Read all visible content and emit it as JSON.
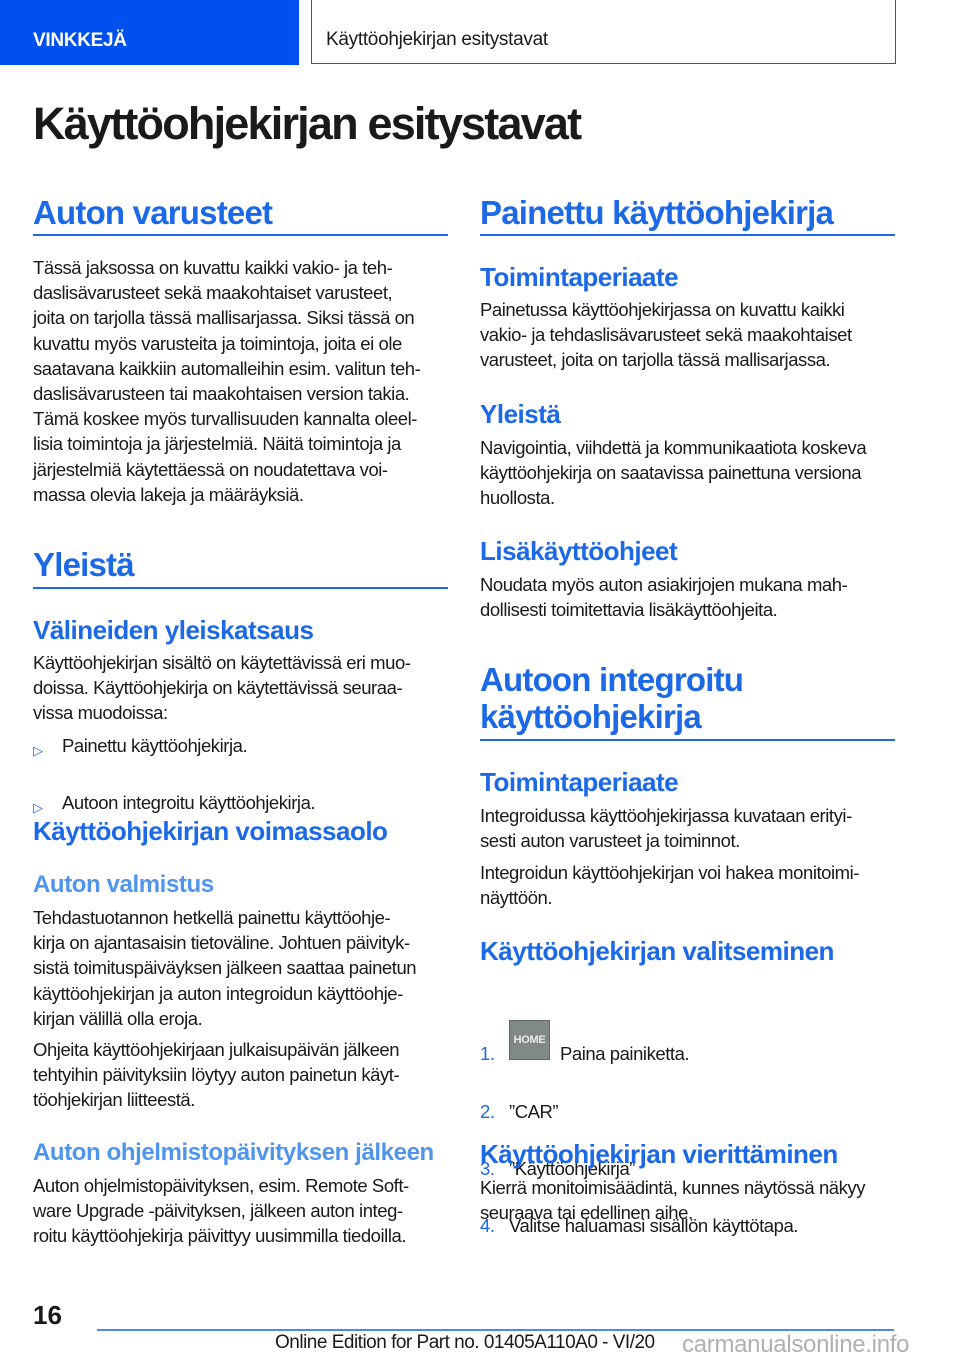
{
  "header": {
    "section": "VINKKEJÄ",
    "chapter": "Käyttöohjekirjan esitystavat"
  },
  "page_title": "Käyttöohjekirjan esitystavat",
  "left": {
    "s1": {
      "title": "Auton varusteet",
      "text": "Tässä jaksossa on kuvattu kaikki vakio- ja teh-\ndaslisävarusteet sekä maakohtaiset varusteet,\njoita on tarjolla tässä mallisarjassa. Siksi tässä on\nkuvattu myös varusteita ja toimintoja, joita ei ole\nsaatavana kaikkiin automalleihin esim. valitun teh-\ndaslisävarusteen tai maakohtaisen version takia.\nTämä koskee myös turvallisuuden kannalta oleel-\nlisia toimintoja ja järjestelmiä. Näitä toimintoja ja\njärjestelmiä käytettäessä on noudatettava voi-\nmassa olevia lakeja ja määräyksiä."
    },
    "s2": {
      "title": "Yleistä",
      "sub1": {
        "title": "Välineiden yleiskatsaus",
        "text": "Käyttöohjekirjan sisältö on käytettävissä eri muo-\ndoissa. Käyttöohjekirja on käytettävissä seuraa-\nvissa muodoissa:",
        "bullets": [
          "Painettu käyttöohjekirja.",
          "Autoon integroitu käyttöohjekirja."
        ]
      },
      "sub2": {
        "title": "Käyttöohjekirjan voimassaolo",
        "a": {
          "title": "Auton valmistus",
          "p1": "Tehdastuotannon hetkellä painettu käyttöohje-\nkirja on ajantasaisin tietoväline. Johtuen päivityk-\nsistä toimituspäiväyksen jälkeen saattaa painetun\nkäyttöohjekirjan ja auton integroidun käyttöohje-\nkirjan välillä olla eroja.",
          "p2": "Ohjeita käyttöohjekirjaan julkaisupäivän jälkeen\ntehtyihin päivityksiin löytyy auton painetun käyt-\ntöohjekirjan liitteestä."
        },
        "b": {
          "title": "Auton ohjelmistopäivityksen jälkeen",
          "p1": "Auton ohjelmistopäivityksen, esim. Remote Soft-\nware Upgrade -päivityksen, jälkeen auton integ-\nroitu käyttöohjekirja päivittyy uusimmilla tiedoilla."
        }
      }
    }
  },
  "right": {
    "s1": {
      "title": "Painettu käyttöohjekirja",
      "a": {
        "title": "Toimintaperiaate",
        "text": "Painetussa käyttöohjekirjassa on kuvattu kaikki\nvakio- ja tehdaslisävarusteet sekä maakohtaiset\nvarusteet, joita on tarjolla tässä mallisarjassa."
      },
      "b": {
        "title": "Yleistä",
        "text": "Navigointia, viihdettä ja kommunikaatiota koskeva\nkäyttöohjekirja on saatavissa painettuna versiona\nhuollosta."
      },
      "c": {
        "title": "Lisäkäyttöohjeet",
        "text": "Noudata myös auton asiakirjojen mukana mah-\ndollisesti toimitettavia lisäkäyttöohjeita."
      }
    },
    "s2": {
      "title": "Autoon integroitu\nkäyttöohjekirja",
      "a": {
        "title": "Toimintaperiaate",
        "p1": "Integroidussa käyttöohjekirjassa kuvataan erityi-\nsesti auton varusteet ja toiminnot.",
        "p2": "Integroidun käyttöohjekirjan voi hakea monitoimi-\nnäyttöön."
      },
      "b": {
        "title": "Käyttöohjekirjan valitseminen",
        "steps": [
          {
            "num": "1.",
            "button": "HOME",
            "text": "Paina painiketta."
          },
          {
            "num": "2.",
            "text": "”CAR”"
          },
          {
            "num": "3.",
            "text": "”Käyttöohjekirja”"
          },
          {
            "num": "4.",
            "text": "Valitse haluamasi sisällön käyttötapa."
          }
        ]
      },
      "c": {
        "title": "Käyttöohjekirjan vierittäminen",
        "text": "Kierrä monitoimisäädintä, kunnes näytössä näkyy\nseuraava tai edellinen aihe."
      }
    }
  },
  "footer": {
    "page_number": "16",
    "edition": "Online Edition for Part no. 01405A110A0 - VI/20",
    "watermark": "carmanualsonline.info"
  },
  "colors": {
    "accent": "#1c69e8",
    "header_tab": "#0050f0",
    "subheading_light": "#4f95ee"
  }
}
